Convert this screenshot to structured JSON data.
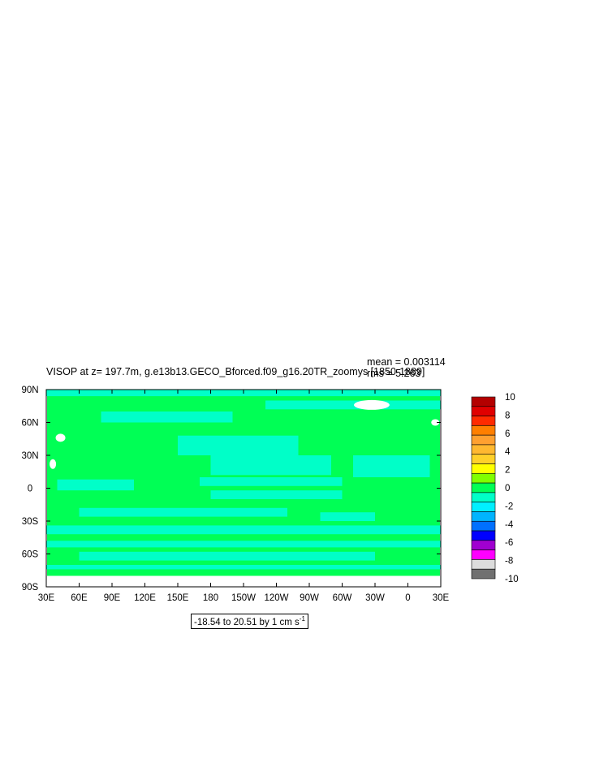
{
  "chart_data": {
    "type": "heatmap",
    "title": "VISOP at z= 197.7m, g.e13b13.GECO_Bforced.f09_g16.20TR_zoom",
    "title_suffix": "ys [1850-1889]",
    "stats": {
      "mean": "mean = 0.003114",
      "rms": "rms = 5.263"
    },
    "x_ticks": [
      "30E",
      "60E",
      "90E",
      "120E",
      "150E",
      "180",
      "150W",
      "120W",
      "90W",
      "60W",
      "30W",
      "0",
      "30E"
    ],
    "y_ticks": [
      "90N",
      "60N",
      "30N",
      "0",
      "30S",
      "60S",
      "90S"
    ],
    "xlim_deg_east": [
      30,
      390
    ],
    "ylim_deg": [
      -90,
      90
    ],
    "info": {
      "range_text": "-18.54 to 20.51 by 1 cm s",
      "unit_exp": "-1"
    },
    "colorbar": {
      "labels": [
        "10",
        "8",
        "6",
        "4",
        "2",
        "0",
        "-2",
        "-4",
        "-6",
        "-8",
        "-10"
      ],
      "colors": [
        "#b40000",
        "#e00000",
        "#ff2a00",
        "#ff7f00",
        "#ffa030",
        "#ffb830",
        "#ffd02a",
        "#ffff00",
        "#80ff00",
        "#00ff55",
        "#00ffc8",
        "#00f0ff",
        "#00b4ff",
        "#0070ff",
        "#0000ff",
        "#a000d0",
        "#ff00ff",
        "#dcdcdc",
        "#707070"
      ]
    },
    "field_colors": {
      "positive": "#00ff55",
      "negative": "#00ffc8",
      "missing": "#ffffff"
    }
  }
}
